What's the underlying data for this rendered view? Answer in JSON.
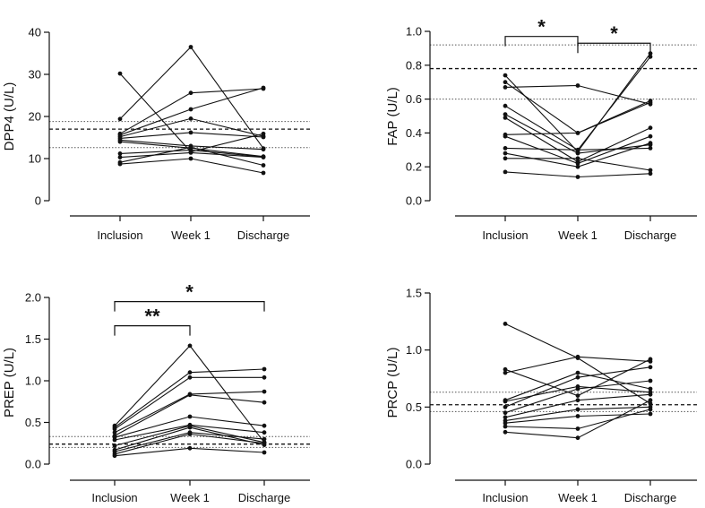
{
  "chart_data": [
    {
      "type": "line",
      "id": "dpp4",
      "ylabel": "DPP4 (U/L)",
      "categories": [
        "Inclusion",
        "Week 1",
        "Discharge"
      ],
      "ylim": [
        0,
        40
      ],
      "yticks": [
        0,
        10,
        20,
        30,
        40
      ],
      "ytick_labels": [
        "0",
        "10",
        "20",
        "30",
        "40"
      ],
      "reference_lines": {
        "median": 17,
        "lower": 12.6,
        "upper": 18.8
      },
      "series": [
        [
          30.2,
          11.6,
          15.9
        ],
        [
          19.4,
          36.5,
          12.4
        ],
        [
          15.9,
          25.6,
          26.6
        ],
        [
          15.6,
          21.7,
          26.8
        ],
        [
          15.2,
          19.5,
          15.3
        ],
        [
          14.8,
          16.2,
          15.1
        ],
        [
          14.4,
          13.0,
          12.2
        ],
        [
          14.0,
          12.5,
          10.5
        ],
        [
          11.2,
          12.0,
          10.4
        ],
        [
          10.3,
          11.4,
          10.3
        ],
        [
          9.1,
          12.7,
          8.4
        ],
        [
          8.7,
          10.0,
          6.6
        ]
      ],
      "annotations": []
    },
    {
      "type": "line",
      "id": "fap",
      "ylabel": "FAP (U/L)",
      "categories": [
        "Inclusion",
        "Week 1",
        "Discharge"
      ],
      "ylim": [
        0,
        1.0
      ],
      "yticks": [
        0,
        0.2,
        0.4,
        0.6,
        0.8,
        1.0
      ],
      "ytick_labels": [
        "0.0",
        "0.2",
        "0.4",
        "0.6",
        "0.8",
        "1.0"
      ],
      "reference_lines": {
        "median": 0.78,
        "lower": 0.6,
        "upper": 0.92
      },
      "series": [
        [
          0.74,
          0.29,
          0.87
        ],
        [
          0.7,
          0.4,
          0.59
        ],
        [
          0.67,
          0.68,
          0.57
        ],
        [
          0.56,
          0.3,
          0.85
        ],
        [
          0.51,
          0.28,
          0.33
        ],
        [
          0.49,
          0.23,
          0.43
        ],
        [
          0.39,
          0.4,
          0.58
        ],
        [
          0.38,
          0.22,
          0.38
        ],
        [
          0.31,
          0.3,
          0.31
        ],
        [
          0.28,
          0.2,
          0.34
        ],
        [
          0.25,
          0.25,
          0.18
        ],
        [
          0.17,
          0.14,
          0.16
        ]
      ],
      "annotations": [
        {
          "from": 0,
          "to": 1,
          "level": 0.97,
          "label": "*"
        },
        {
          "from": 1,
          "to": 2,
          "level": 0.93,
          "label": "*"
        }
      ]
    },
    {
      "type": "line",
      "id": "prep",
      "ylabel": "PREP (U/L)",
      "categories": [
        "Inclusion",
        "Week 1",
        "Discharge"
      ],
      "ylim": [
        0,
        2.0
      ],
      "yticks": [
        0,
        0.5,
        1.0,
        1.5,
        2.0
      ],
      "ytick_labels": [
        "0.0",
        "0.5",
        "1.0",
        "1.5",
        "2.0"
      ],
      "reference_lines": {
        "median": 0.24,
        "lower": 0.2,
        "upper": 0.33
      },
      "series": [
        [
          0.46,
          1.42,
          0.26
        ],
        [
          0.44,
          1.1,
          1.14
        ],
        [
          0.42,
          1.04,
          1.04
        ],
        [
          0.38,
          0.84,
          0.87
        ],
        [
          0.34,
          0.83,
          0.74
        ],
        [
          0.32,
          0.57,
          0.46
        ],
        [
          0.29,
          0.47,
          0.38
        ],
        [
          0.22,
          0.46,
          0.26
        ],
        [
          0.17,
          0.44,
          0.23
        ],
        [
          0.15,
          0.38,
          0.3
        ],
        [
          0.12,
          0.36,
          0.25
        ],
        [
          0.1,
          0.19,
          0.14
        ]
      ],
      "annotations": [
        {
          "from": 0,
          "to": 1,
          "level": 1.66,
          "label": "**"
        },
        {
          "from": 0,
          "to": 2,
          "level": 1.95,
          "label": "*"
        }
      ]
    },
    {
      "type": "line",
      "id": "prcp",
      "ylabel": "PRCP (U/L)",
      "categories": [
        "Inclusion",
        "Week 1",
        "Discharge"
      ],
      "ylim": [
        0,
        1.5
      ],
      "yticks": [
        0,
        0.5,
        1.0,
        1.5
      ],
      "ytick_labels": [
        "0.0",
        "0.5",
        "1.0",
        "1.5"
      ],
      "reference_lines": {
        "median": 0.52,
        "lower": 0.46,
        "upper": 0.63
      },
      "series": [
        [
          1.23,
          0.93,
          0.53
        ],
        [
          0.83,
          0.6,
          0.92
        ],
        [
          0.8,
          0.94,
          0.9
        ],
        [
          0.56,
          0.8,
          0.66
        ],
        [
          0.55,
          0.68,
          0.63
        ],
        [
          0.5,
          0.76,
          0.85
        ],
        [
          0.45,
          0.66,
          0.73
        ],
        [
          0.41,
          0.56,
          0.61
        ],
        [
          0.38,
          0.48,
          0.5
        ],
        [
          0.36,
          0.42,
          0.44
        ],
        [
          0.33,
          0.31,
          0.48
        ],
        [
          0.28,
          0.23,
          0.56
        ]
      ],
      "annotations": []
    }
  ]
}
